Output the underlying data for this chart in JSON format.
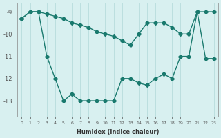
{
  "line1_x": [
    0,
    1,
    2,
    3,
    4,
    5,
    6,
    7,
    8,
    9,
    10,
    11,
    12,
    13,
    14,
    15,
    16,
    17,
    18,
    19,
    20,
    21,
    22,
    23
  ],
  "line1_y": [
    -9.3,
    -9.0,
    -9.0,
    -11.0,
    -12.0,
    -13.0,
    -12.7,
    -13.0,
    -13.0,
    -13.0,
    -13.0,
    -13.0,
    -12.0,
    -12.0,
    -12.2,
    -12.3,
    -12.0,
    -11.8,
    -12.0,
    -11.0,
    -11.0,
    -9.0,
    -11.1,
    -11.1
  ],
  "line2_x": [
    0,
    1,
    2,
    3,
    4,
    5,
    6,
    7,
    8,
    9,
    10,
    11,
    12,
    13,
    14,
    15,
    16,
    17,
    18,
    19,
    20,
    21,
    22,
    23
  ],
  "line2_y": [
    -9.3,
    -9.0,
    -9.0,
    -9.1,
    -9.2,
    -9.3,
    -9.5,
    -9.6,
    -9.7,
    -9.9,
    -10.0,
    -10.1,
    -10.3,
    -10.5,
    -10.0,
    -9.5,
    -9.5,
    -9.5,
    -9.7,
    -10.0,
    -10.0,
    -9.0,
    -9.0,
    -9.0
  ],
  "line_color": "#1a7a6e",
  "bg_color": "#d8f0f0",
  "grid_color": "#b0d8d8",
  "xlabel": "Humidex (Indice chaleur)",
  "ylabel_ticks": [
    "-9",
    "-10",
    "-11",
    "-12",
    "-13"
  ],
  "yticks": [
    -9,
    -10,
    -11,
    -12,
    -13
  ],
  "xticks": [
    0,
    1,
    2,
    3,
    4,
    5,
    6,
    7,
    8,
    9,
    10,
    11,
    12,
    13,
    14,
    15,
    16,
    17,
    18,
    19,
    20,
    21,
    22,
    23
  ],
  "xlim": [
    -0.5,
    23.5
  ],
  "ylim": [
    -13.7,
    -8.6
  ],
  "marker": "D",
  "markersize": 3,
  "linewidth": 1.0
}
